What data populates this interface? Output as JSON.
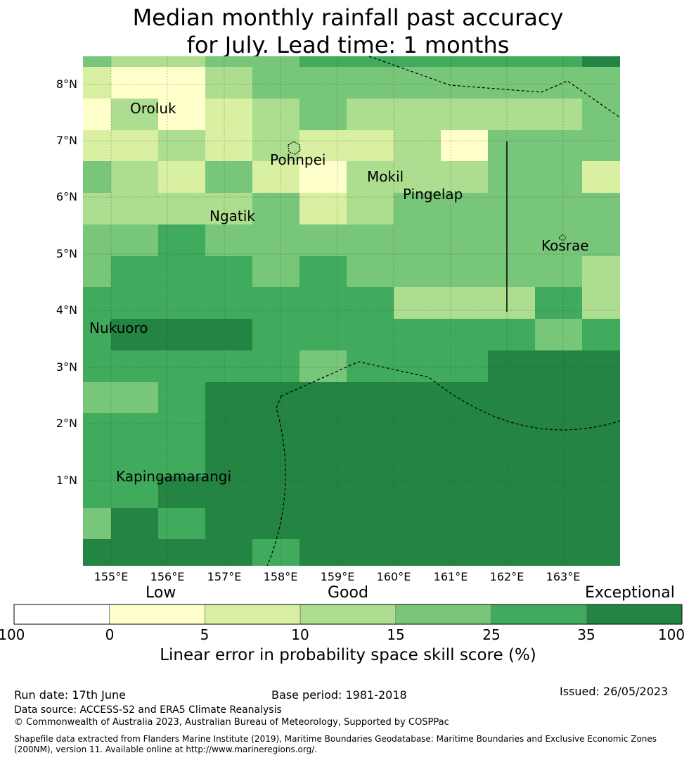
{
  "title": {
    "line1": "Median monthly rainfall past accuracy",
    "line2": "for July. Lead time: 1 months"
  },
  "map": {
    "lat_labels": [
      "8°N",
      "7°N",
      "6°N",
      "5°N",
      "4°N",
      "3°N",
      "2°N",
      "1°N"
    ],
    "lon_labels": [
      "155°E",
      "156°E",
      "157°E",
      "158°E",
      "159°E",
      "160°E",
      "161°E",
      "162°E",
      "163°E"
    ],
    "places": [
      "Oroluk",
      "Pohnpei",
      "Mokil",
      "Pingelap",
      "Ngatik",
      "Kosrae",
      "Nukuoro",
      "Kapingamarangi"
    ],
    "grid_class_rows": [
      [
        3,
        2,
        2,
        3,
        3,
        4,
        4,
        4,
        4,
        4,
        4,
        5,
        5
      ],
      [
        1,
        0,
        0,
        2,
        3,
        3,
        3,
        3,
        3,
        3,
        3,
        3,
        3
      ],
      [
        0,
        2,
        0,
        1,
        2,
        3,
        2,
        2,
        2,
        2,
        2,
        3,
        3
      ],
      [
        1,
        1,
        2,
        1,
        2,
        1,
        1,
        2,
        0,
        3,
        3,
        3,
        3
      ],
      [
        3,
        2,
        1,
        3,
        1,
        0,
        2,
        2,
        2,
        3,
        3,
        1,
        3
      ],
      [
        2,
        2,
        2,
        2,
        3,
        1,
        2,
        3,
        3,
        3,
        3,
        3,
        3
      ],
      [
        3,
        3,
        4,
        3,
        3,
        3,
        3,
        3,
        3,
        3,
        3,
        3,
        3
      ],
      [
        3,
        4,
        4,
        4,
        3,
        4,
        3,
        3,
        3,
        3,
        3,
        2,
        1
      ],
      [
        4,
        4,
        4,
        4,
        4,
        4,
        4,
        2,
        2,
        2,
        4,
        2,
        2
      ],
      [
        4,
        5,
        5,
        5,
        4,
        4,
        4,
        4,
        4,
        4,
        3,
        4,
        3
      ],
      [
        4,
        4,
        4,
        4,
        4,
        3,
        4,
        4,
        4,
        5,
        5,
        5,
        4
      ],
      [
        3,
        3,
        4,
        5,
        5,
        5,
        5,
        5,
        5,
        5,
        5,
        5,
        5
      ],
      [
        4,
        4,
        4,
        5,
        5,
        5,
        5,
        5,
        5,
        5,
        5,
        5,
        5
      ],
      [
        4,
        4,
        4,
        5,
        5,
        5,
        5,
        5,
        5,
        5,
        5,
        5,
        5
      ],
      [
        4,
        4,
        5,
        5,
        5,
        5,
        5,
        5,
        5,
        5,
        5,
        5,
        5
      ],
      [
        3,
        5,
        4,
        5,
        5,
        5,
        5,
        5,
        5,
        5,
        5,
        5,
        5
      ],
      [
        5,
        5,
        5,
        5,
        4,
        5,
        5,
        5,
        5,
        5,
        5,
        5,
        5
      ]
    ]
  },
  "legend": {
    "categories": [
      "Low",
      "Good",
      "Exceptional"
    ],
    "ticks": [
      "-100",
      "0",
      "5",
      "10",
      "15",
      "25",
      "35",
      "100"
    ],
    "colors": [
      "#ffffff",
      "#ffffcc",
      "#d9f0a3",
      "#addd8e",
      "#78c679",
      "#41ab5d",
      "#238443"
    ],
    "label": "Linear error in probability space skill score (%)"
  },
  "footer": {
    "run_date": "Run date: 17th June",
    "base_period": "Base period: 1981-2018",
    "issued": "Issued: 26/05/2023",
    "data_source": "Data source: ACCESS-S2 and ERA5 Climate Reanalysis",
    "copyright": "© Commonwealth of Australia 2023, Australian Bureau of Meteorology, Supported by COSPPac",
    "shapefile_line1": "Shapefile data extracted from Flanders Marine Institute (2019), Maritime Boundaries Geodatabase: Maritime Boundaries and Exclusive Economic Zones",
    "shapefile_line2": "(200NM), version 11. Available online at http://www.marineregions.org/."
  }
}
